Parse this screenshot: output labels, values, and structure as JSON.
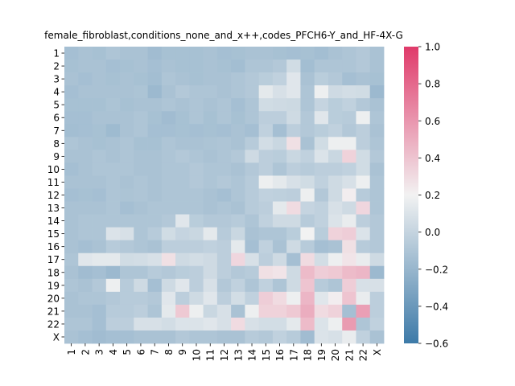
{
  "chart_data": {
    "type": "heatmap",
    "title": "female_fibroblast,conditions_none_and_x++,codes_PFCH6-Y_and_HF-4X-G",
    "xlabel": "",
    "ylabel": "",
    "categories": [
      "1",
      "2",
      "3",
      "4",
      "5",
      "6",
      "7",
      "8",
      "9",
      "10",
      "11",
      "12",
      "13",
      "14",
      "15",
      "16",
      "17",
      "18",
      "19",
      "20",
      "21",
      "22",
      "X"
    ],
    "colorbar": {
      "vmin": -0.6,
      "vmax": 1.0,
      "ticks": [
        "-0.6",
        "-0.4",
        "-0.2",
        "0.0",
        "0.2",
        "0.4",
        "0.6",
        "0.8",
        "1.0"
      ],
      "colors": {
        "low": "#3d7aa8",
        "mid": "#f2f2f2",
        "high": "#e03a6a"
      }
    },
    "values": [
      [
        -0.14,
        -0.12,
        -0.13,
        -0.1,
        -0.12,
        -0.12,
        -0.16,
        -0.13,
        -0.13,
        -0.13,
        -0.12,
        -0.14,
        -0.13,
        -0.12,
        -0.12,
        -0.13,
        -0.14,
        -0.13,
        -0.15,
        -0.12,
        -0.1,
        -0.08,
        -0.12
      ],
      [
        -0.13,
        -0.12,
        -0.12,
        -0.14,
        -0.13,
        -0.12,
        -0.14,
        -0.12,
        -0.13,
        -0.13,
        -0.12,
        -0.13,
        -0.15,
        -0.1,
        -0.1,
        -0.08,
        0.05,
        -0.15,
        -0.1,
        -0.1,
        -0.1,
        -0.08,
        -0.12
      ],
      [
        -0.12,
        -0.14,
        -0.12,
        -0.13,
        -0.12,
        -0.13,
        -0.15,
        -0.1,
        -0.12,
        -0.13,
        -0.12,
        -0.12,
        -0.1,
        -0.08,
        -0.05,
        -0.02,
        0.12,
        -0.12,
        -0.05,
        -0.08,
        -0.14,
        -0.12,
        -0.13
      ],
      [
        -0.14,
        -0.12,
        -0.12,
        -0.12,
        -0.12,
        -0.11,
        -0.18,
        -0.12,
        -0.08,
        -0.1,
        -0.1,
        -0.12,
        -0.1,
        -0.08,
        0.14,
        0.08,
        0.12,
        -0.1,
        0.18,
        0.04,
        0.06,
        0.05,
        -0.18
      ],
      [
        -0.13,
        -0.13,
        -0.13,
        -0.11,
        -0.13,
        -0.12,
        -0.12,
        -0.1,
        -0.12,
        -0.1,
        -0.12,
        -0.1,
        -0.14,
        -0.1,
        0.05,
        0.04,
        0.03,
        -0.1,
        0.0,
        -0.05,
        -0.02,
        -0.08,
        -0.12
      ],
      [
        -0.14,
        -0.14,
        -0.12,
        -0.12,
        -0.12,
        -0.1,
        -0.13,
        -0.16,
        -0.13,
        -0.1,
        -0.13,
        -0.1,
        -0.13,
        -0.1,
        -0.04,
        -0.04,
        0.04,
        -0.08,
        0.12,
        -0.05,
        -0.06,
        0.18,
        -0.1
      ],
      [
        -0.15,
        -0.14,
        -0.13,
        -0.17,
        -0.12,
        -0.1,
        -0.14,
        -0.14,
        -0.13,
        -0.14,
        -0.13,
        -0.14,
        -0.12,
        -0.14,
        -0.02,
        -0.14,
        -0.04,
        -0.08,
        -0.05,
        -0.02,
        -0.08,
        -0.04,
        -0.12
      ],
      [
        -0.1,
        -0.12,
        -0.13,
        -0.12,
        -0.1,
        -0.13,
        -0.13,
        -0.1,
        -0.12,
        -0.12,
        -0.11,
        -0.1,
        -0.12,
        -0.06,
        0.06,
        0.02,
        0.28,
        -0.12,
        0.05,
        0.18,
        0.18,
        -0.04,
        -0.1
      ],
      [
        -0.12,
        -0.12,
        -0.1,
        -0.12,
        -0.1,
        -0.12,
        -0.12,
        -0.1,
        -0.08,
        -0.1,
        -0.12,
        -0.1,
        -0.08,
        0.04,
        -0.04,
        -0.05,
        0.02,
        -0.02,
        0.1,
        0.02,
        0.34,
        0.05,
        -0.08
      ],
      [
        -0.14,
        -0.12,
        -0.1,
        -0.1,
        -0.1,
        -0.12,
        -0.12,
        -0.1,
        -0.1,
        -0.08,
        -0.1,
        -0.1,
        -0.12,
        -0.08,
        -0.04,
        -0.1,
        -0.04,
        -0.06,
        -0.04,
        -0.04,
        -0.02,
        0.05,
        -0.12
      ],
      [
        -0.12,
        -0.12,
        -0.12,
        -0.1,
        -0.12,
        -0.1,
        -0.12,
        -0.1,
        -0.1,
        -0.08,
        -0.1,
        -0.08,
        -0.1,
        -0.06,
        0.18,
        0.14,
        0.08,
        0.05,
        -0.02,
        0.04,
        0.08,
        0.18,
        -0.1
      ],
      [
        -0.14,
        -0.13,
        -0.14,
        -0.1,
        -0.11,
        -0.1,
        -0.12,
        -0.1,
        -0.1,
        -0.1,
        -0.12,
        -0.14,
        -0.1,
        -0.06,
        -0.02,
        -0.03,
        -0.04,
        0.18,
        -0.08,
        0.04,
        0.22,
        -0.06,
        -0.1
      ],
      [
        -0.12,
        -0.12,
        -0.12,
        -0.1,
        -0.14,
        -0.12,
        -0.1,
        -0.1,
        -0.1,
        -0.1,
        -0.12,
        -0.1,
        -0.12,
        -0.06,
        -0.04,
        0.14,
        0.3,
        0.0,
        -0.02,
        0.08,
        0.04,
        0.32,
        -0.1
      ],
      [
        -0.12,
        -0.1,
        -0.1,
        -0.1,
        -0.1,
        -0.1,
        -0.1,
        -0.08,
        0.12,
        -0.05,
        -0.08,
        -0.08,
        -0.06,
        -0.1,
        -0.02,
        0.04,
        0.04,
        -0.06,
        -0.02,
        0.1,
        0.16,
        -0.04,
        -0.08
      ],
      [
        -0.12,
        -0.1,
        -0.1,
        0.1,
        0.08,
        -0.1,
        -0.06,
        0.05,
        0.0,
        0.02,
        0.14,
        -0.06,
        0.02,
        -0.12,
        -0.1,
        -0.1,
        -0.05,
        0.2,
        -0.05,
        0.34,
        0.36,
        0.1,
        -0.08
      ],
      [
        -0.12,
        -0.14,
        -0.12,
        -0.06,
        -0.08,
        -0.1,
        -0.12,
        -0.04,
        -0.04,
        -0.04,
        -0.02,
        -0.04,
        0.14,
        -0.14,
        -0.02,
        -0.12,
        0.04,
        -0.06,
        -0.14,
        -0.12,
        0.28,
        -0.06,
        -0.08
      ],
      [
        -0.1,
        0.12,
        0.14,
        0.14,
        0.05,
        0.06,
        0.08,
        0.28,
        0.04,
        0.06,
        0.04,
        -0.04,
        0.32,
        0.08,
        -0.04,
        0.04,
        -0.14,
        0.3,
        0.06,
        0.18,
        0.26,
        0.16,
        0.04
      ],
      [
        -0.12,
        -0.16,
        -0.14,
        -0.18,
        -0.1,
        -0.1,
        -0.06,
        -0.08,
        -0.05,
        -0.04,
        0.04,
        -0.04,
        -0.08,
        -0.06,
        0.28,
        0.26,
        0.04,
        0.44,
        0.36,
        0.38,
        0.44,
        0.46,
        -0.18
      ],
      [
        -0.1,
        -0.12,
        -0.08,
        0.18,
        -0.06,
        0.04,
        -0.14,
        0.04,
        0.12,
        -0.04,
        0.08,
        -0.08,
        -0.02,
        -0.1,
        -0.02,
        -0.1,
        0.04,
        0.4,
        -0.06,
        -0.1,
        0.36,
        0.08,
        0.08
      ],
      [
        -0.12,
        -0.1,
        -0.1,
        -0.08,
        -0.06,
        -0.06,
        -0.08,
        0.12,
        -0.04,
        0.04,
        0.12,
        -0.04,
        0.06,
        -0.02,
        0.36,
        0.3,
        0.18,
        0.46,
        0.12,
        0.22,
        0.4,
        0.16,
        -0.04
      ],
      [
        -0.12,
        -0.12,
        -0.14,
        -0.06,
        -0.06,
        -0.04,
        -0.1,
        0.14,
        0.38,
        0.18,
        0.02,
        0.08,
        -0.12,
        0.18,
        0.34,
        0.34,
        0.38,
        0.5,
        0.3,
        0.34,
        -0.14,
        0.56,
        -0.04
      ],
      [
        -0.1,
        -0.1,
        -0.14,
        -0.04,
        -0.04,
        0.08,
        0.08,
        0.06,
        0.1,
        0.1,
        0.12,
        0.08,
        0.3,
        0.08,
        0.06,
        0.06,
        0.14,
        0.44,
        0.1,
        0.18,
        0.58,
        -0.1,
        -0.02
      ],
      [
        -0.12,
        -0.14,
        -0.16,
        -0.14,
        -0.14,
        -0.12,
        -0.12,
        -0.12,
        -0.08,
        -0.1,
        -0.1,
        -0.12,
        -0.12,
        -0.06,
        -0.08,
        -0.02,
        -0.06,
        -0.16,
        0.1,
        0.08,
        0.16,
        -0.02,
        -0.12
      ]
    ]
  }
}
